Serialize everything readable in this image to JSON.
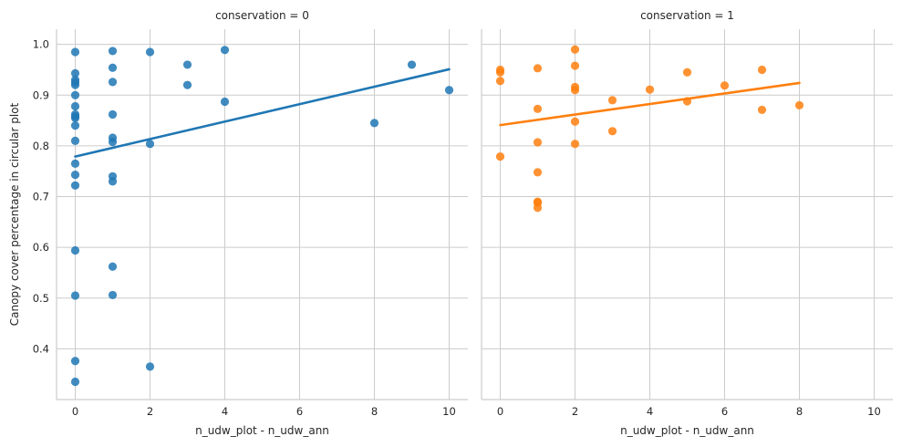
{
  "chart_data": {
    "type": "scatter",
    "ylabel": "Canopy cover percentage in circular plot",
    "shared_y": true,
    "ylim": [
      0.3,
      1.03
    ],
    "y_ticks": [
      0.4,
      0.5,
      0.6,
      0.7,
      0.8,
      0.9,
      1.0
    ],
    "grid": true,
    "panels": [
      {
        "title": "conservation = 0",
        "xlabel": "n_udw_plot - n_udw_ann",
        "xlim": [
          -0.5,
          10.5
        ],
        "x_ticks": [
          0,
          2,
          4,
          6,
          8,
          10
        ],
        "color": "#1f77b4",
        "points": [
          [
            0,
            0.985
          ],
          [
            0,
            0.943
          ],
          [
            0,
            0.93
          ],
          [
            0,
            0.925
          ],
          [
            0,
            0.92
          ],
          [
            0,
            0.9
          ],
          [
            0,
            0.878
          ],
          [
            0,
            0.862
          ],
          [
            0,
            0.858
          ],
          [
            0,
            0.855
          ],
          [
            0,
            0.84
          ],
          [
            0,
            0.81
          ],
          [
            0,
            0.765
          ],
          [
            0,
            0.743
          ],
          [
            0,
            0.722
          ],
          [
            0,
            0.594
          ],
          [
            0,
            0.505
          ],
          [
            0,
            0.376
          ],
          [
            0,
            0.335
          ],
          [
            1,
            0.987
          ],
          [
            1,
            0.954
          ],
          [
            1,
            0.926
          ],
          [
            1,
            0.862
          ],
          [
            1,
            0.816
          ],
          [
            1,
            0.808
          ],
          [
            1,
            0.74
          ],
          [
            1,
            0.73
          ],
          [
            1,
            0.562
          ],
          [
            1,
            0.506
          ],
          [
            2,
            0.985
          ],
          [
            2,
            0.804
          ],
          [
            2,
            0.365
          ],
          [
            3,
            0.96
          ],
          [
            3,
            0.92
          ],
          [
            4,
            0.989
          ],
          [
            4,
            0.887
          ],
          [
            8,
            0.845
          ],
          [
            9,
            0.96
          ],
          [
            10,
            0.91
          ]
        ],
        "regression": {
          "x": [
            0,
            10
          ],
          "y": [
            0.779,
            0.951
          ]
        }
      },
      {
        "title": "conservation = 1",
        "xlabel": "n_udw_plot - n_udw_ann",
        "xlim": [
          -0.5,
          10.5
        ],
        "x_ticks": [
          0,
          2,
          4,
          6,
          8,
          10
        ],
        "color": "#ff7f0e",
        "points": [
          [
            0,
            0.95
          ],
          [
            0,
            0.945
          ],
          [
            0,
            0.928
          ],
          [
            0,
            0.779
          ],
          [
            1,
            0.953
          ],
          [
            1,
            0.873
          ],
          [
            1,
            0.807
          ],
          [
            1,
            0.748
          ],
          [
            1,
            0.69
          ],
          [
            1,
            0.688
          ],
          [
            1,
            0.678
          ],
          [
            2,
            0.99
          ],
          [
            2,
            0.958
          ],
          [
            2,
            0.916
          ],
          [
            2,
            0.91
          ],
          [
            2,
            0.848
          ],
          [
            2,
            0.804
          ],
          [
            3,
            0.89
          ],
          [
            3,
            0.829
          ],
          [
            4,
            0.911
          ],
          [
            5,
            0.945
          ],
          [
            5,
            0.888
          ],
          [
            6,
            0.919
          ],
          [
            7,
            0.95
          ],
          [
            7,
            0.871
          ],
          [
            8,
            0.88
          ]
        ],
        "regression": {
          "x": [
            0,
            8
          ],
          "y": [
            0.841,
            0.924
          ]
        }
      }
    ]
  }
}
